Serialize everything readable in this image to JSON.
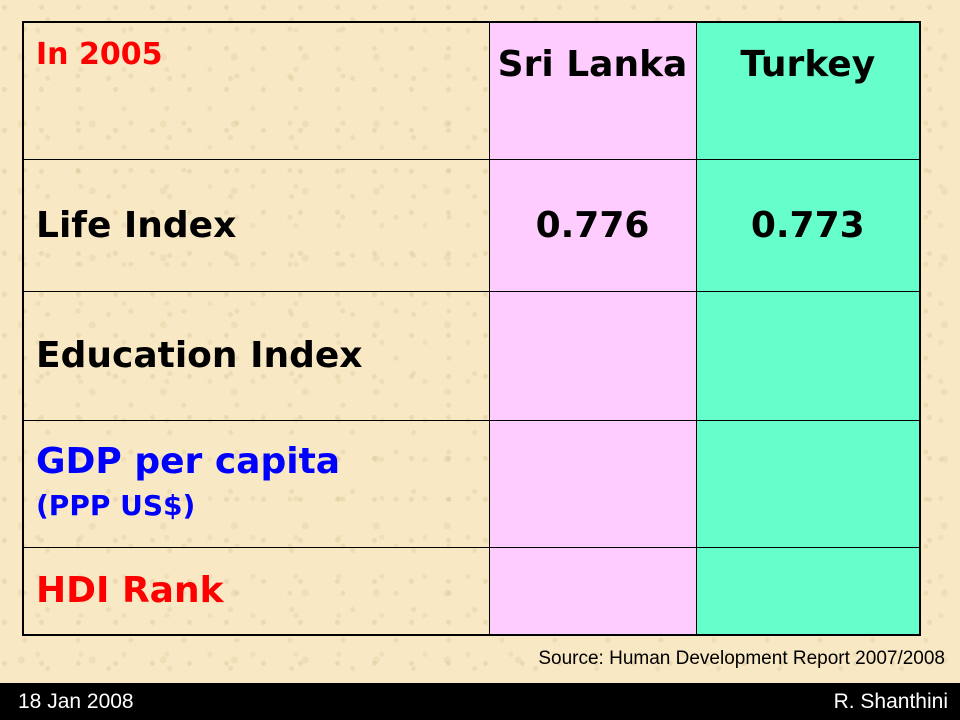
{
  "table": {
    "header": {
      "year_label": "In 2005",
      "country_a": "Sri Lanka",
      "country_b": "Turkey"
    },
    "rows": [
      {
        "label": "Life Index",
        "value_a": "0.776",
        "value_b": "0.773"
      },
      {
        "label": "Education Index",
        "value_a": "",
        "value_b": ""
      },
      {
        "label": "GDP per capita",
        "sublabel": "(PPP US$)",
        "value_a": "",
        "value_b": ""
      },
      {
        "label": "HDI Rank",
        "value_a": "",
        "value_b": ""
      }
    ]
  },
  "source": "Source: Human Development Report 2007/2008",
  "footer": {
    "date": "18 Jan 2008",
    "author": "R. Shanthini"
  },
  "colors": {
    "background": "#f8e8c4",
    "country_a_column": "#ffccff",
    "country_b_column": "#66ffcc",
    "red_text": "#ff0000",
    "blue_text": "#0000ff",
    "footer_bar": "#000000"
  }
}
